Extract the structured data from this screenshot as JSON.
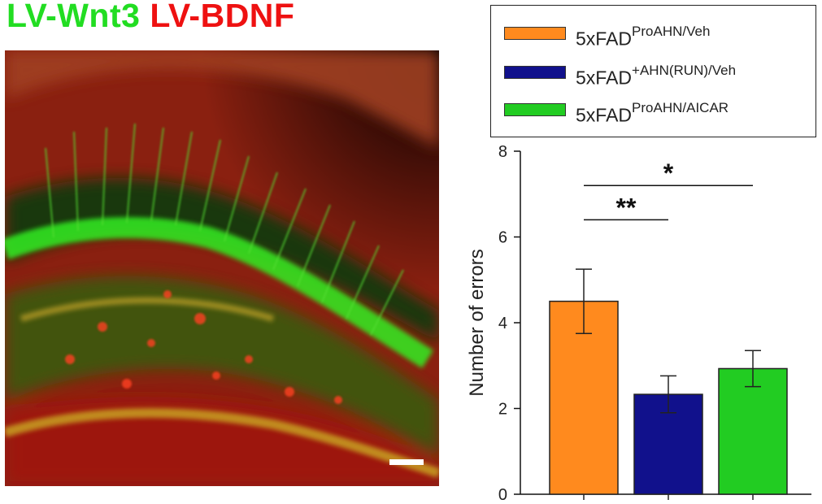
{
  "figure": {
    "title_part1": "LV-Wnt3",
    "title_part2": "LV-BDNF",
    "colors": {
      "green": "#22dd22",
      "red": "#ee1111"
    }
  },
  "image": {
    "description_icon": "fluorescence-micrograph"
  },
  "legend": {
    "items": [
      {
        "base": "5xFAD",
        "sup": "ProAHN/Veh",
        "color": "#ff8a1e"
      },
      {
        "base": "5xFAD",
        "sup": "+AHN(RUN)/Veh",
        "color": "#11118c"
      },
      {
        "base": "5xFAD",
        "sup": "ProAHN/AICAR",
        "color": "#22cc22"
      }
    ]
  },
  "chart_data": {
    "type": "bar",
    "categories": [
      "5xFADProAHN/Veh",
      "5xFAD+AHN(RUN)/Veh",
      "5xFADProAHN/AICAR"
    ],
    "values": [
      4.5,
      2.33,
      2.93
    ],
    "errors": [
      0.75,
      0.43,
      0.42
    ],
    "colors": [
      "#ff8a1e",
      "#11118c",
      "#22cc22"
    ],
    "xlabel": "",
    "ylabel": "Number of errors",
    "ylim": [
      0,
      8
    ],
    "yticks": [
      0,
      2,
      4,
      6,
      8
    ],
    "grid": false,
    "significance": [
      {
        "from": 0,
        "to": 1,
        "label": "**",
        "y": 6.4
      },
      {
        "from": 0,
        "to": 2,
        "label": "*",
        "y": 7.2
      }
    ]
  }
}
